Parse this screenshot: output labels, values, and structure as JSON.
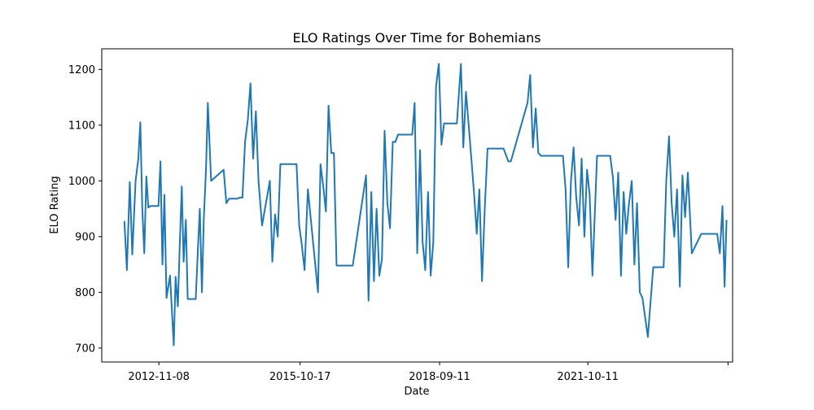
{
  "chart_data": {
    "type": "line",
    "title": "ELO Ratings Over Time for Bohemians",
    "xlabel": "Date",
    "ylabel": "ELO Rating",
    "x_tick_labels": [
      "2012-11-08",
      "2015-10-17",
      "2018-09-11",
      "2021-10-11",
      ""
    ],
    "y_tick_labels": [
      "700",
      "800",
      "900",
      "1000",
      "1100",
      "1200"
    ],
    "y_ticks": [
      700,
      800,
      900,
      1000,
      1100,
      1200
    ],
    "x_ticks": [
      "2012-11-08",
      "2015-10-17",
      "2018-09-11",
      "2021-10-11",
      "2024-09-10"
    ],
    "xlim": [
      "2011-09-01",
      "2024-10-15"
    ],
    "ylim": [
      675,
      1237
    ],
    "grid": false,
    "legend": "none",
    "line_color": "#1f77b4",
    "series": [
      {
        "x": [
          "2012-02-20",
          "2012-03-10",
          "2012-04-01",
          "2012-04-20",
          "2012-05-15",
          "2012-06-05",
          "2012-06-20",
          "2012-07-05",
          "2012-07-20",
          "2012-08-05",
          "2012-08-20",
          "2012-09-05",
          "2012-09-20",
          "2012-10-05",
          "2012-10-20",
          "2012-11-05",
          "2012-11-20",
          "2012-12-05",
          "2012-12-20",
          "2013-01-05",
          "2013-02-01",
          "2013-03-01",
          "2013-03-15",
          "2013-04-01",
          "2013-04-15",
          "2013-05-01",
          "2013-05-15",
          "2013-06-01",
          "2013-06-15",
          "2013-07-01",
          "2013-07-15",
          "2013-08-01",
          "2013-08-15",
          "2013-09-01",
          "2013-09-15",
          "2013-10-01",
          "2013-10-15",
          "2013-11-01",
          "2013-11-15",
          "2013-12-10",
          "2014-03-15",
          "2014-04-05",
          "2014-04-25",
          "2014-05-15",
          "2014-06-05",
          "2014-06-25",
          "2014-07-15",
          "2014-08-05",
          "2014-08-25",
          "2014-09-15",
          "2014-10-05",
          "2014-10-25",
          "2014-11-15",
          "2014-12-05",
          "2015-01-01",
          "2015-03-01",
          "2015-03-20",
          "2015-04-10",
          "2015-04-30",
          "2015-05-20",
          "2015-06-10",
          "2015-06-30",
          "2015-07-20",
          "2015-08-10",
          "2015-08-30",
          "2015-09-20",
          "2015-10-10",
          "2015-10-30",
          "2015-11-20",
          "2015-12-15",
          "2016-03-01",
          "2016-03-20",
          "2016-04-10",
          "2016-04-30",
          "2016-05-20",
          "2016-06-10",
          "2016-06-30",
          "2016-07-20",
          "2016-08-10",
          "2016-08-30",
          "2016-09-20",
          "2016-10-10",
          "2016-10-30",
          "2016-11-20",
          "2017-03-01",
          "2017-03-20",
          "2017-04-10",
          "2017-04-30",
          "2017-05-20",
          "2017-06-10",
          "2017-06-30",
          "2017-07-20",
          "2017-08-10",
          "2017-08-30",
          "2017-09-20",
          "2017-10-10",
          "2017-10-30",
          "2017-11-20",
          "2018-02-15",
          "2018-03-05",
          "2018-03-25",
          "2018-04-15",
          "2018-05-05",
          "2018-05-25",
          "2018-06-15",
          "2018-07-05",
          "2018-07-25",
          "2018-08-15",
          "2018-09-05",
          "2018-09-25",
          "2018-10-15",
          "2018-11-05",
          "2018-11-25",
          "2019-01-20",
          "2019-02-20",
          "2019-03-10",
          "2019-03-30",
          "2019-04-20",
          "2019-05-10",
          "2019-05-30",
          "2019-06-20",
          "2019-07-10",
          "2019-07-30",
          "2019-08-20",
          "2019-09-10",
          "2019-09-30",
          "2019-10-20",
          "2019-11-10",
          "2020-01-10",
          "2020-02-15",
          "2020-03-05",
          "2020-07-10",
          "2020-07-30",
          "2020-08-20",
          "2020-09-10",
          "2020-09-30",
          "2020-10-20",
          "2020-11-10",
          "2020-11-30",
          "2021-01-05",
          "2021-03-15",
          "2021-04-05",
          "2021-04-25",
          "2021-05-15",
          "2021-06-05",
          "2021-06-25",
          "2021-07-15",
          "2021-08-05",
          "2021-08-25",
          "2021-09-15",
          "2021-10-05",
          "2021-10-25",
          "2021-11-15",
          "2021-12-20",
          "2022-02-20",
          "2022-03-10",
          "2022-03-30",
          "2022-04-20",
          "2022-05-10",
          "2022-05-30",
          "2022-06-20",
          "2022-07-10",
          "2022-07-30",
          "2022-08-20",
          "2022-09-10",
          "2022-09-30",
          "2022-10-20",
          "2022-11-10",
          "2022-11-30",
          "2023-01-10",
          "2023-02-20",
          "2023-03-10",
          "2023-03-30",
          "2023-04-20",
          "2023-05-10",
          "2023-05-30",
          "2023-06-20",
          "2023-07-10",
          "2023-07-30",
          "2023-08-20",
          "2023-09-10",
          "2023-09-30",
          "2023-10-20",
          "2023-11-10",
          "2023-12-10",
          "2024-02-20",
          "2024-03-10",
          "2024-03-30",
          "2024-04-20",
          "2024-05-10",
          "2024-05-30",
          "2024-06-20",
          "2024-07-10",
          "2024-07-30",
          "2024-08-15",
          "2024-08-30"
        ],
        "values": [
          928,
          840,
          998,
          868,
          1000,
          1040,
          1105,
          950,
          870,
          1008,
          952,
          955,
          955,
          955,
          955,
          955,
          1035,
          850,
          975,
          790,
          830,
          705,
          828,
          775,
          880,
          990,
          855,
          930,
          788,
          788,
          788,
          788,
          788,
          880,
          950,
          800,
          930,
          1020,
          1140,
          1000,
          1020,
          960,
          968,
          968,
          968,
          968,
          970,
          970,
          1070,
          1110,
          1175,
          1040,
          1125,
          1000,
          920,
          1000,
          855,
          940,
          900,
          1030,
          1030,
          1030,
          1030,
          1030,
          1030,
          1030,
          920,
          885,
          840,
          985,
          800,
          1030,
          990,
          945,
          1135,
          1050,
          1050,
          848,
          848,
          848,
          848,
          848,
          848,
          848,
          1010,
          785,
          980,
          820,
          950,
          830,
          860,
          1090,
          960,
          915,
          1070,
          1070,
          1083,
          1083,
          1083,
          1140,
          870,
          1055,
          890,
          840,
          980,
          830,
          890,
          1170,
          1210,
          1065,
          1103,
          1103,
          1103,
          1103,
          1210,
          1060,
          1160,
          1100,
          1040,
          980,
          905,
          985,
          820,
          950,
          1058,
          1058,
          1058,
          1058,
          1058,
          1035,
          1035,
          1140,
          1190,
          1060,
          1130,
          1050,
          1045,
          1045,
          1045,
          1045,
          1045,
          1045,
          985,
          845,
          1000,
          1060,
          970,
          920,
          1040,
          900,
          1020,
          975,
          830,
          1045,
          1045,
          1045,
          1045,
          1005,
          930,
          1015,
          830,
          980,
          905,
          960,
          1000,
          850,
          960,
          800,
          790,
          720,
          845,
          845,
          845,
          845,
          845,
          1000,
          1080,
          960,
          900,
          985,
          810,
          1010,
          935,
          1015,
          870,
          905,
          905,
          905,
          905,
          905,
          905,
          905,
          870,
          955,
          810,
          930
        ]
      }
    ]
  }
}
